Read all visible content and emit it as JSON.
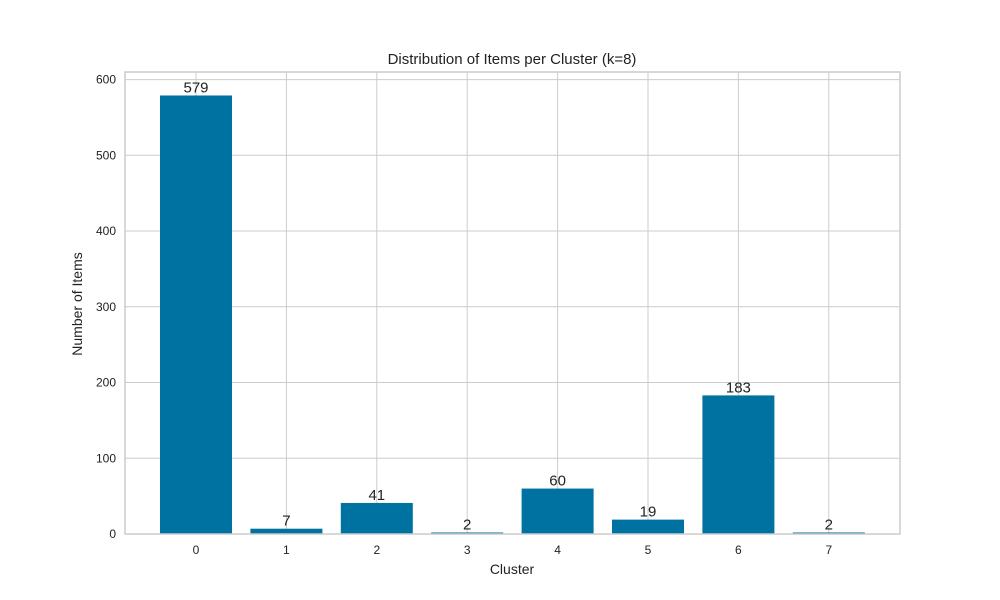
{
  "chart_data": {
    "type": "bar",
    "title": "Distribution of Items per Cluster (k=8)",
    "xlabel": "Cluster",
    "ylabel": "Number of Items",
    "categories": [
      "0",
      "1",
      "2",
      "3",
      "4",
      "5",
      "6",
      "7"
    ],
    "values": [
      579,
      7,
      41,
      2,
      60,
      19,
      183,
      2
    ],
    "data_labels": [
      "579",
      "7",
      "41",
      "2",
      "60",
      "19",
      "183",
      "2"
    ],
    "ylim": [
      0,
      610
    ],
    "yticks": [
      0,
      100,
      200,
      300,
      400,
      500,
      600
    ],
    "grid": true,
    "legend": "none",
    "colors": {
      "bar": "#0072a2",
      "grid": "#cccccc",
      "frame": "#cccccc",
      "text": "#222222"
    }
  }
}
